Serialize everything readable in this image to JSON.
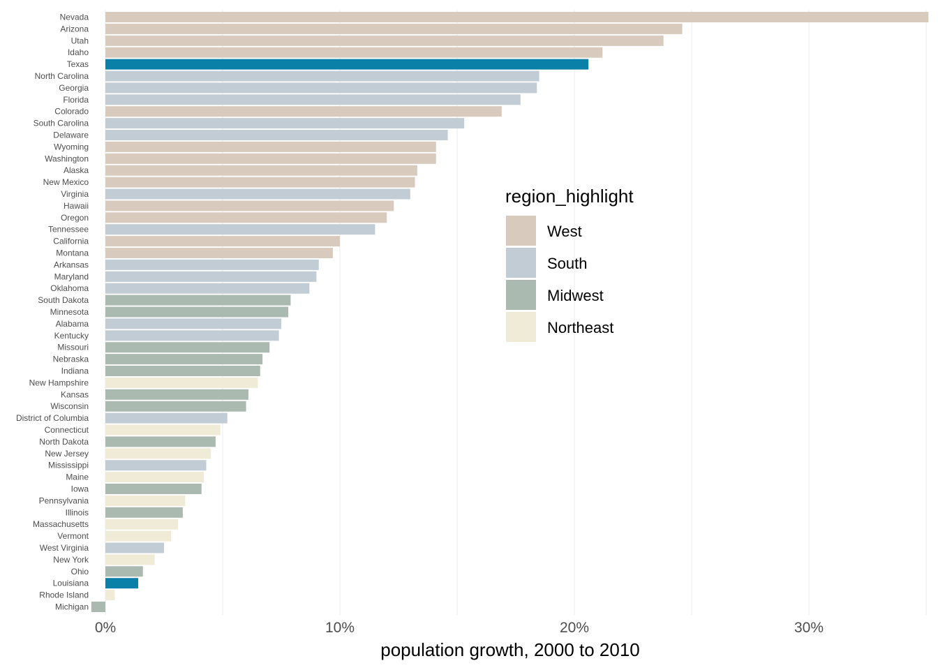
{
  "chart_data": {
    "type": "bar",
    "orientation": "horizontal",
    "xlabel": "population growth, 2000 to 2010",
    "xlim": [
      0,
      0.35
    ],
    "x_ticks": [
      {
        "value": 0,
        "label": "0%"
      },
      {
        "value": 0.1,
        "label": "10%"
      },
      {
        "value": 0.2,
        "label": "20%"
      },
      {
        "value": 0.3,
        "label": "30%"
      }
    ],
    "minor_grid": [
      0.05,
      0.15,
      0.25,
      0.35
    ],
    "grid": true,
    "legend": {
      "title": "region_highlight",
      "placement": "right-center",
      "entries": [
        "West",
        "South",
        "Midwest",
        "Northeast"
      ]
    },
    "colors": {
      "West": "#d8cabd",
      "South": "#c1ccd5",
      "Midwest": "#abbab1",
      "Northeast": "#efebd6",
      "highlight": "#0a7fa8"
    },
    "bars": [
      {
        "state": "Nevada",
        "value": 0.351,
        "region": "West",
        "highlight": false
      },
      {
        "state": "Arizona",
        "value": 0.246,
        "region": "West",
        "highlight": false
      },
      {
        "state": "Utah",
        "value": 0.238,
        "region": "West",
        "highlight": false
      },
      {
        "state": "Idaho",
        "value": 0.212,
        "region": "West",
        "highlight": false
      },
      {
        "state": "Texas",
        "value": 0.206,
        "region": "South",
        "highlight": true
      },
      {
        "state": "North Carolina",
        "value": 0.185,
        "region": "South",
        "highlight": false
      },
      {
        "state": "Georgia",
        "value": 0.184,
        "region": "South",
        "highlight": false
      },
      {
        "state": "Florida",
        "value": 0.177,
        "region": "South",
        "highlight": false
      },
      {
        "state": "Colorado",
        "value": 0.169,
        "region": "West",
        "highlight": false
      },
      {
        "state": "South Carolina",
        "value": 0.153,
        "region": "South",
        "highlight": false
      },
      {
        "state": "Delaware",
        "value": 0.146,
        "region": "South",
        "highlight": false
      },
      {
        "state": "Wyoming",
        "value": 0.141,
        "region": "West",
        "highlight": false
      },
      {
        "state": "Washington",
        "value": 0.141,
        "region": "West",
        "highlight": false
      },
      {
        "state": "Alaska",
        "value": 0.133,
        "region": "West",
        "highlight": false
      },
      {
        "state": "New Mexico",
        "value": 0.132,
        "region": "West",
        "highlight": false
      },
      {
        "state": "Virginia",
        "value": 0.13,
        "region": "South",
        "highlight": false
      },
      {
        "state": "Hawaii",
        "value": 0.123,
        "region": "West",
        "highlight": false
      },
      {
        "state": "Oregon",
        "value": 0.12,
        "region": "West",
        "highlight": false
      },
      {
        "state": "Tennessee",
        "value": 0.115,
        "region": "South",
        "highlight": false
      },
      {
        "state": "California",
        "value": 0.1,
        "region": "West",
        "highlight": false
      },
      {
        "state": "Montana",
        "value": 0.097,
        "region": "West",
        "highlight": false
      },
      {
        "state": "Arkansas",
        "value": 0.091,
        "region": "South",
        "highlight": false
      },
      {
        "state": "Maryland",
        "value": 0.09,
        "region": "South",
        "highlight": false
      },
      {
        "state": "Oklahoma",
        "value": 0.087,
        "region": "South",
        "highlight": false
      },
      {
        "state": "South Dakota",
        "value": 0.079,
        "region": "Midwest",
        "highlight": false
      },
      {
        "state": "Minnesota",
        "value": 0.078,
        "region": "Midwest",
        "highlight": false
      },
      {
        "state": "Alabama",
        "value": 0.075,
        "region": "South",
        "highlight": false
      },
      {
        "state": "Kentucky",
        "value": 0.074,
        "region": "South",
        "highlight": false
      },
      {
        "state": "Missouri",
        "value": 0.07,
        "region": "Midwest",
        "highlight": false
      },
      {
        "state": "Nebraska",
        "value": 0.067,
        "region": "Midwest",
        "highlight": false
      },
      {
        "state": "Indiana",
        "value": 0.066,
        "region": "Midwest",
        "highlight": false
      },
      {
        "state": "New Hampshire",
        "value": 0.065,
        "region": "Northeast",
        "highlight": false
      },
      {
        "state": "Kansas",
        "value": 0.061,
        "region": "Midwest",
        "highlight": false
      },
      {
        "state": "Wisconsin",
        "value": 0.06,
        "region": "Midwest",
        "highlight": false
      },
      {
        "state": "District of Columbia",
        "value": 0.052,
        "region": "South",
        "highlight": false
      },
      {
        "state": "Connecticut",
        "value": 0.049,
        "region": "Northeast",
        "highlight": false
      },
      {
        "state": "North Dakota",
        "value": 0.047,
        "region": "Midwest",
        "highlight": false
      },
      {
        "state": "New Jersey",
        "value": 0.045,
        "region": "Northeast",
        "highlight": false
      },
      {
        "state": "Mississippi",
        "value": 0.043,
        "region": "South",
        "highlight": false
      },
      {
        "state": "Maine",
        "value": 0.042,
        "region": "Northeast",
        "highlight": false
      },
      {
        "state": "Iowa",
        "value": 0.041,
        "region": "Midwest",
        "highlight": false
      },
      {
        "state": "Pennsylvania",
        "value": 0.034,
        "region": "Northeast",
        "highlight": false
      },
      {
        "state": "Illinois",
        "value": 0.033,
        "region": "Midwest",
        "highlight": false
      },
      {
        "state": "Massachusetts",
        "value": 0.031,
        "region": "Northeast",
        "highlight": false
      },
      {
        "state": "Vermont",
        "value": 0.028,
        "region": "Northeast",
        "highlight": false
      },
      {
        "state": "West Virginia",
        "value": 0.025,
        "region": "South",
        "highlight": false
      },
      {
        "state": "New York",
        "value": 0.021,
        "region": "Northeast",
        "highlight": false
      },
      {
        "state": "Ohio",
        "value": 0.016,
        "region": "Midwest",
        "highlight": false
      },
      {
        "state": "Louisiana",
        "value": 0.014,
        "region": "South",
        "highlight": true
      },
      {
        "state": "Rhode Island",
        "value": 0.004,
        "region": "Northeast",
        "highlight": false
      },
      {
        "state": "Michigan",
        "value": -0.006,
        "region": "Midwest",
        "highlight": false
      }
    ]
  }
}
